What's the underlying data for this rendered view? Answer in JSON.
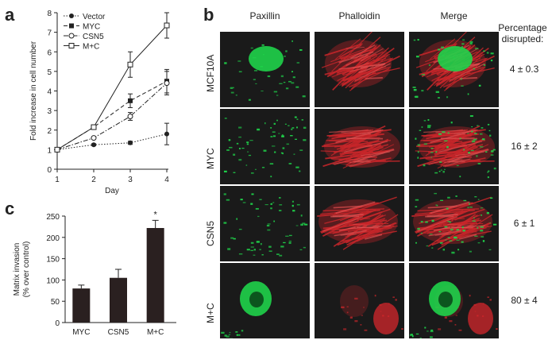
{
  "panel_labels": {
    "a": "a",
    "b": "b",
    "c": "c"
  },
  "chart_data": [
    {
      "type": "line",
      "ylabel": "Fold increase in cell number",
      "xlabel": "Day",
      "x": [
        1,
        2,
        3,
        4
      ],
      "xlim": [
        1,
        4
      ],
      "ylim": [
        0,
        8
      ],
      "xticks": [
        "1",
        "2",
        "3",
        "4"
      ],
      "yticks": [
        "0",
        "1",
        "2",
        "3",
        "4",
        "5",
        "6",
        "7",
        "8"
      ],
      "legend_placement": "top-left",
      "series": [
        {
          "name": "Vector",
          "values": [
            1.0,
            1.25,
            1.35,
            1.8
          ],
          "errors": [
            0,
            0.05,
            0.08,
            0.55
          ],
          "marker": "filled-circle",
          "dash": "dotted",
          "color": "#222222"
        },
        {
          "name": "MYC",
          "values": [
            1.0,
            2.15,
            3.5,
            4.5
          ],
          "errors": [
            0,
            0.05,
            0.35,
            0.6
          ],
          "marker": "filled-square",
          "dash": "dashed",
          "color": "#222222"
        },
        {
          "name": "CSN5",
          "values": [
            1.0,
            1.6,
            2.7,
            4.4
          ],
          "errors": [
            0,
            0.05,
            0.2,
            0.6
          ],
          "marker": "open-circle",
          "dash": "dash-dot",
          "color": "#222222"
        },
        {
          "name": "M+C",
          "values": [
            1.0,
            2.15,
            5.35,
            7.35
          ],
          "errors": [
            0,
            0.05,
            0.65,
            0.65
          ],
          "marker": "open-square",
          "dash": "solid",
          "color": "#222222"
        }
      ]
    },
    {
      "type": "bar",
      "ylabel_lines": [
        "Matrix invasion",
        "(% over control)"
      ],
      "categories": [
        "MYC",
        "CSN5",
        "M+C"
      ],
      "values": [
        80,
        105,
        222
      ],
      "errors": [
        8,
        20,
        18
      ],
      "annotations": [
        "",
        "",
        "*"
      ],
      "ylim": [
        0,
        250
      ],
      "yticks": [
        "0",
        "50",
        "100",
        "150",
        "200",
        "250"
      ],
      "bar_color": "#2a2020"
    }
  ],
  "microscopy": {
    "columns": [
      "Paxillin",
      "Phalloidin",
      "Merge"
    ],
    "percent_header_lines": [
      "Percentage",
      "disrupted:"
    ],
    "rows": [
      {
        "label": "MCF10A",
        "percent": "4 ± 0.3"
      },
      {
        "label": "MYC",
        "percent": "16 ± 2"
      },
      {
        "label": "CSN5",
        "percent": "6 ± 1"
      },
      {
        "label": "M+C",
        "percent": "80 ± 4"
      }
    ],
    "colors": {
      "paxillin": "#1fd34a",
      "phalloidin": "#c8262a",
      "background": "#1a1a1a"
    }
  }
}
